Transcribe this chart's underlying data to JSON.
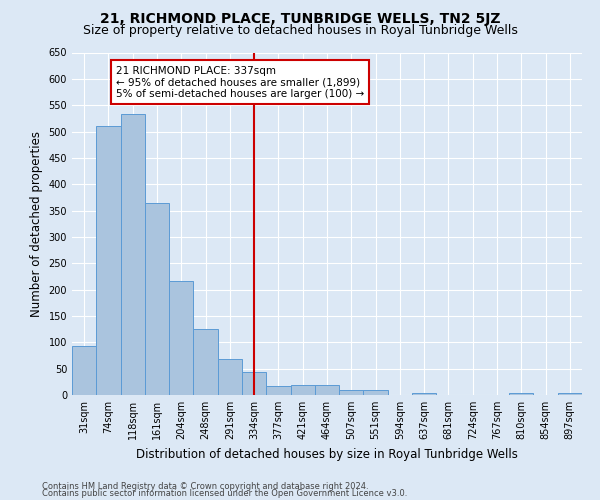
{
  "title": "21, RICHMOND PLACE, TUNBRIDGE WELLS, TN2 5JZ",
  "subtitle": "Size of property relative to detached houses in Royal Tunbridge Wells",
  "xlabel": "Distribution of detached houses by size in Royal Tunbridge Wells",
  "ylabel": "Number of detached properties",
  "footer1": "Contains HM Land Registry data © Crown copyright and database right 2024.",
  "footer2": "Contains public sector information licensed under the Open Government Licence v3.0.",
  "bin_labels": [
    "31sqm",
    "74sqm",
    "118sqm",
    "161sqm",
    "204sqm",
    "248sqm",
    "291sqm",
    "334sqm",
    "377sqm",
    "421sqm",
    "464sqm",
    "507sqm",
    "551sqm",
    "594sqm",
    "637sqm",
    "681sqm",
    "724sqm",
    "767sqm",
    "810sqm",
    "854sqm",
    "897sqm"
  ],
  "bar_values": [
    93,
    510,
    533,
    365,
    217,
    125,
    68,
    43,
    17,
    19,
    19,
    9,
    9,
    0,
    4,
    0,
    0,
    0,
    3,
    0,
    3
  ],
  "bar_color": "#aac4de",
  "bar_edge_color": "#5b9bd5",
  "vline_x": 7,
  "annotation_text": "21 RICHMOND PLACE: 337sqm\n← 95% of detached houses are smaller (1,899)\n5% of semi-detached houses are larger (100) →",
  "annotation_box_color": "#ffffff",
  "annotation_box_edge_color": "#cc0000",
  "vline_color": "#cc0000",
  "ylim": [
    0,
    650
  ],
  "yticks": [
    0,
    50,
    100,
    150,
    200,
    250,
    300,
    350,
    400,
    450,
    500,
    550,
    600,
    650
  ],
  "bg_color": "#dce8f5",
  "plot_bg_color": "#dce8f5",
  "grid_color": "#ffffff",
  "title_fontsize": 10,
  "subtitle_fontsize": 9,
  "tick_fontsize": 7,
  "label_fontsize": 8.5,
  "footer_fontsize": 6,
  "annotation_fontsize": 7.5
}
